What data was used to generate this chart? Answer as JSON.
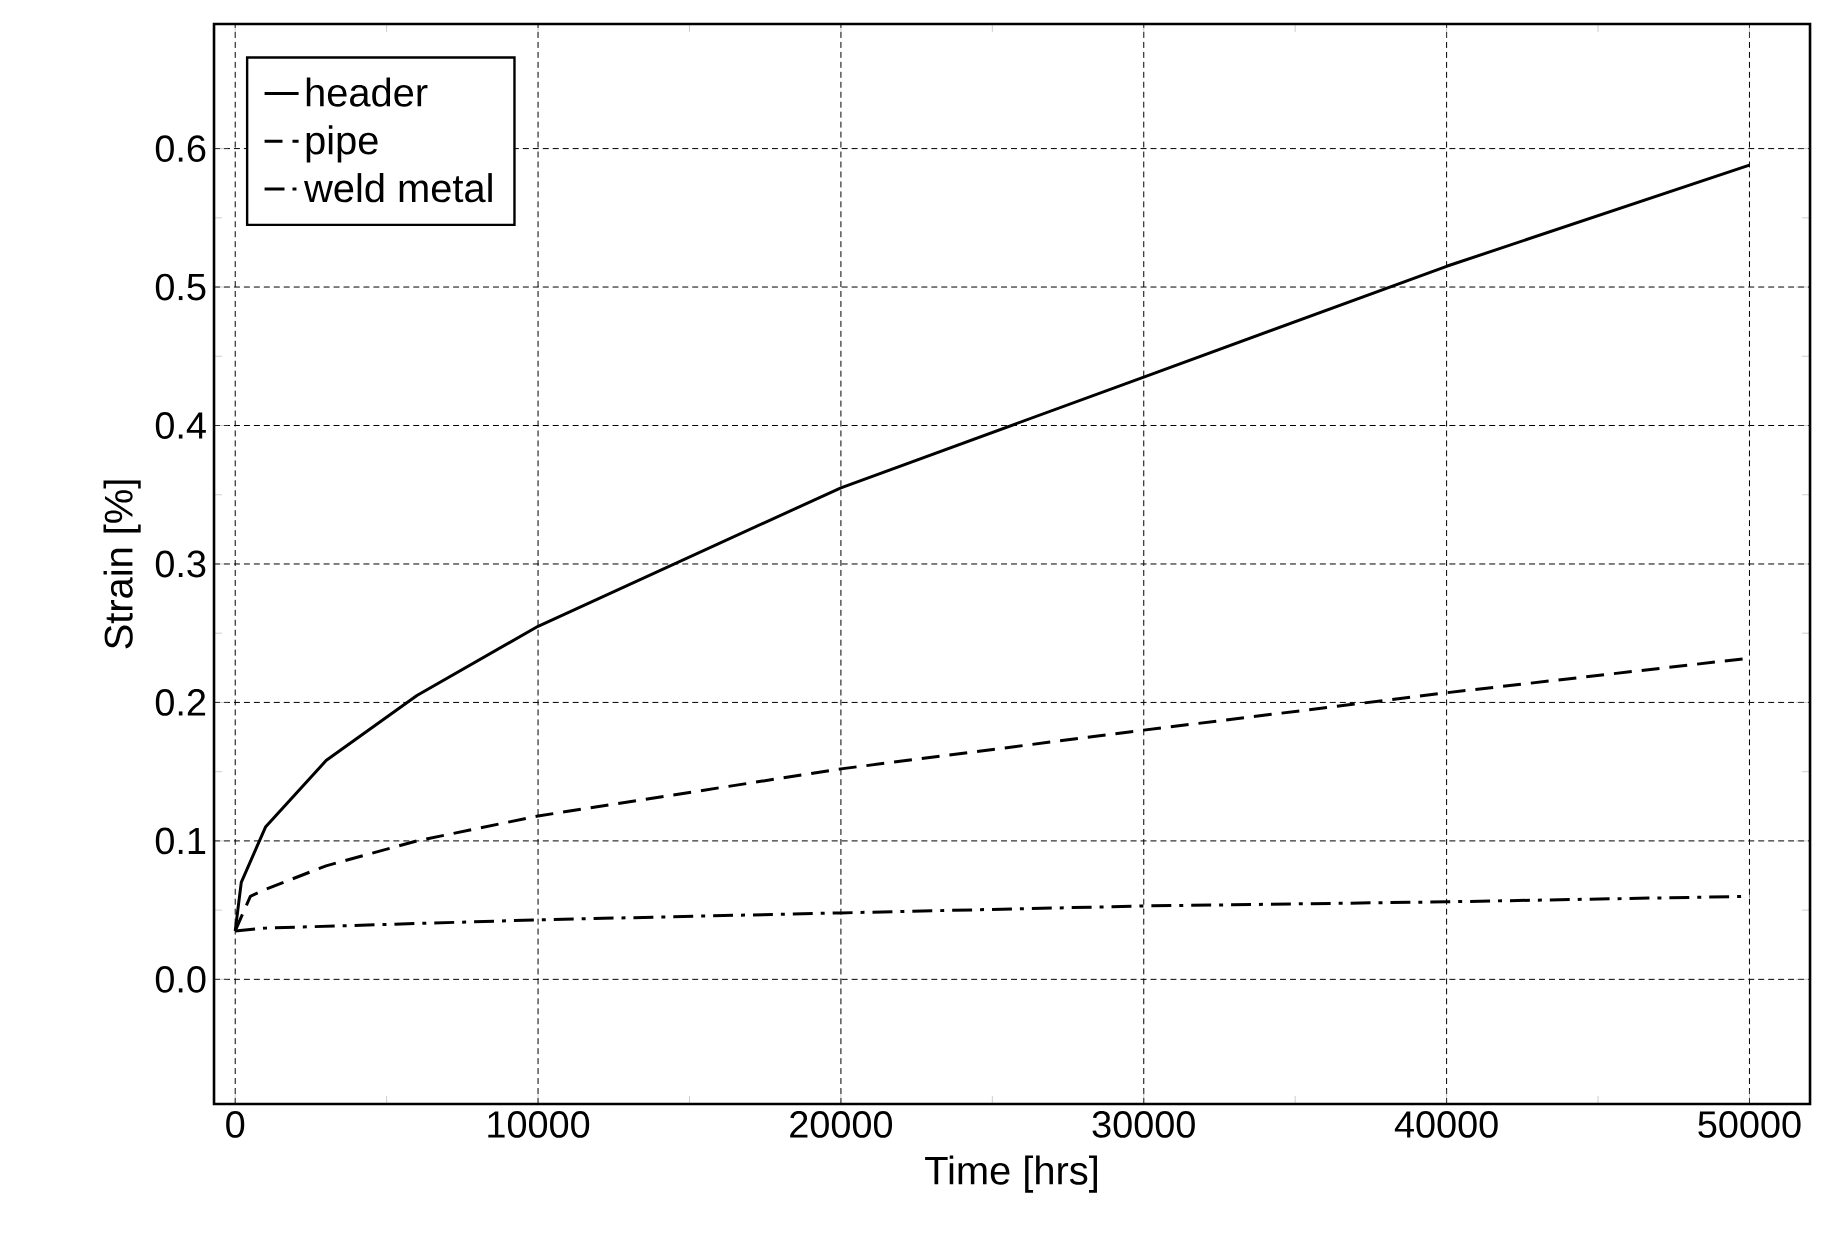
{
  "chart_data": {
    "type": "line",
    "xlabel": "Time [hrs]",
    "ylabel": "Strain [%]",
    "xlim": [
      -700,
      52000
    ],
    "ylim": [
      -0.09,
      0.69
    ],
    "xticks": [
      0,
      10000,
      20000,
      30000,
      40000,
      50000
    ],
    "yticks": [
      {
        "value": 0,
        "label": "0.0"
      },
      0.1,
      0.2,
      0.3,
      0.4,
      0.5,
      0.6
    ],
    "grid": true,
    "legend": "top left",
    "series": [
      {
        "name": "header",
        "color": "#000000",
        "line_style": "solid",
        "x": [
          0,
          200,
          1000,
          3000,
          6000,
          10000,
          20000,
          30000,
          40000,
          50000
        ],
        "values": [
          0.035,
          0.07,
          0.11,
          0.158,
          0.205,
          0.255,
          0.355,
          0.435,
          0.515,
          0.588
        ]
      },
      {
        "name": "pipe",
        "color": "#000000",
        "line_style": "dashed",
        "x": [
          0,
          500,
          1000,
          3000,
          6000,
          10000,
          20000,
          30000,
          40000,
          50000
        ],
        "values": [
          0.035,
          0.06,
          0.065,
          0.082,
          0.1,
          0.118,
          0.152,
          0.18,
          0.207,
          0.232
        ]
      },
      {
        "name": "weld metal",
        "color": "#000000",
        "line_style": "dashdot",
        "x": [
          0,
          1000,
          10000,
          20000,
          30000,
          40000,
          50000
        ],
        "values": [
          0.035,
          0.037,
          0.043,
          0.048,
          0.053,
          0.056,
          0.06
        ]
      }
    ]
  }
}
